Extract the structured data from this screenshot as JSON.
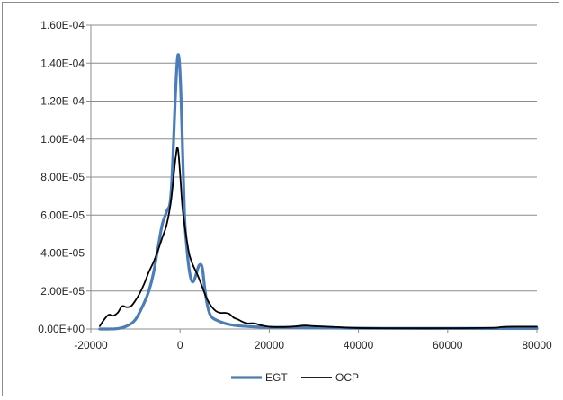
{
  "chart_data": {
    "type": "line",
    "title": "",
    "xlabel": "",
    "ylabel": "",
    "xlim": [
      -20000,
      80000
    ],
    "ylim": [
      0,
      0.00016
    ],
    "x_ticks": [
      -20000,
      0,
      20000,
      40000,
      60000,
      80000
    ],
    "x_tick_labels": [
      "-20000",
      "0",
      "20000",
      "40000",
      "60000",
      "80000"
    ],
    "y_ticks": [
      0,
      2e-05,
      4e-05,
      6e-05,
      8e-05,
      0.0001,
      0.00012,
      0.00014,
      0.00016
    ],
    "y_tick_labels": [
      "0.00E+00",
      "2.00E-05",
      "4.00E-05",
      "6.00E-05",
      "8.00E-05",
      "1.00E-04",
      "1.20E-04",
      "1.40E-04",
      "1.60E-04"
    ],
    "grid": "horizontal",
    "legend_position": "bottom",
    "series": [
      {
        "name": "EGT",
        "color": "#4a7ebb",
        "x": [
          -18000,
          -16000,
          -14000,
          -12000,
          -10000,
          -8000,
          -7000,
          -6000,
          -5000,
          -4000,
          -3000,
          -2000,
          -1000,
          -500,
          0,
          500,
          1000,
          1500,
          2000,
          2500,
          3000,
          3500,
          4000,
          4500,
          5000,
          5500,
          6000,
          6500,
          7000,
          8000,
          10000,
          12000,
          14000,
          16000,
          18000,
          20000,
          25000,
          30000,
          40000,
          50000,
          60000,
          70000,
          80000
        ],
        "y": [
          0,
          0,
          2e-07,
          1.5e-06,
          5e-06,
          1.4e-05,
          2e-05,
          2.9e-05,
          4.2e-05,
          5.5e-05,
          6.2e-05,
          7.2e-05,
          0.000125,
          0.000144,
          0.000135,
          0.0001,
          6e-05,
          4.3e-05,
          3.2e-05,
          2.6e-05,
          2.5e-05,
          2.8e-05,
          3.2e-05,
          3.4e-05,
          3.2e-05,
          2.2e-05,
          1.4e-05,
          9e-06,
          6.5e-06,
          4.8e-06,
          3e-06,
          2e-06,
          1.5e-06,
          1.2e-06,
          1e-06,
          9e-07,
          8e-07,
          6e-07,
          4e-07,
          3e-07,
          3e-07,
          3e-07,
          3e-07
        ]
      },
      {
        "name": "OCP",
        "color": "#000000",
        "x": [
          -18000,
          -17000,
          -16000,
          -15000,
          -14000,
          -13000,
          -12000,
          -11000,
          -10000,
          -9000,
          -8000,
          -7000,
          -6000,
          -5000,
          -4000,
          -3000,
          -2000,
          -1000,
          -500,
          0,
          500,
          1000,
          1500,
          2000,
          2500,
          3000,
          4000,
          5000,
          6000,
          7000,
          8000,
          9000,
          10000,
          11000,
          12000,
          13000,
          14000,
          15000,
          16000,
          17000,
          18000,
          20000,
          22000,
          25000,
          28000,
          30000,
          35000,
          40000,
          50000,
          60000,
          70000,
          72000,
          75000,
          80000
        ],
        "y": [
          1.5e-06,
          5e-06,
          7.5e-06,
          7e-06,
          8.5e-06,
          1.2e-05,
          1.15e-05,
          1.2e-05,
          1.5e-05,
          1.9e-05,
          2.4e-05,
          3e-05,
          3.5e-05,
          4.1e-05,
          4.8e-05,
          5.5e-05,
          6.8e-05,
          9e-05,
          9.5e-05,
          8.2e-05,
          6.5e-05,
          5.5e-05,
          4.7e-05,
          4e-05,
          3.6e-05,
          3.3e-05,
          2.8e-05,
          2.2e-05,
          1.6e-05,
          1.2e-05,
          9.5e-06,
          8.5e-06,
          8.5e-06,
          8e-06,
          6e-06,
          5e-06,
          3.8e-06,
          3e-06,
          3e-06,
          2.8e-06,
          2e-06,
          1.2e-06,
          1e-06,
          1.2e-06,
          1.8e-06,
          1.5e-06,
          1e-06,
          5e-07,
          4e-07,
          4e-07,
          6e-07,
          1e-06,
          1.2e-06,
          1.2e-06
        ]
      }
    ]
  }
}
